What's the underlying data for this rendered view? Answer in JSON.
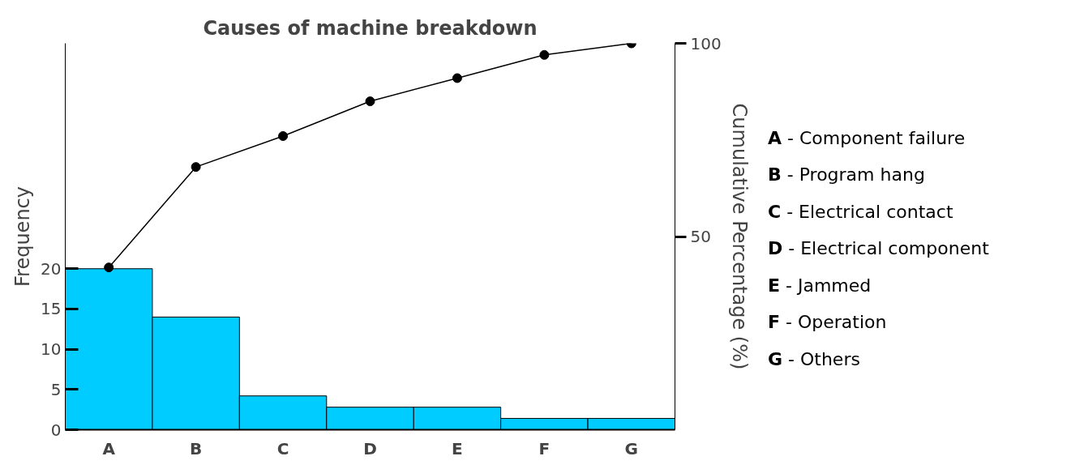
{
  "chart_data": {
    "type": "bar",
    "title": "Causes of machine breakdown",
    "ylabel": "Frequency",
    "y2label": "Cumulative Percentage (%)",
    "categories": [
      "A",
      "B",
      "C",
      "D",
      "E",
      "F",
      "G"
    ],
    "series": [
      {
        "color": "#00ccff",
        "values": [
          20,
          14,
          4.2,
          2.8,
          2.8,
          1.4,
          1.4
        ]
      },
      {
        "type": "line",
        "axis": "y2",
        "color": "#000000",
        "values": [
          42,
          68,
          76,
          85,
          91,
          97,
          100
        ],
        "marker": "circle"
      }
    ],
    "ylim": [
      0,
      48
    ],
    "yticks": [
      0,
      5,
      10,
      15,
      20
    ],
    "y2lim": [
      0,
      100
    ],
    "y2ticks": [
      50,
      100
    ],
    "grid": false,
    "annotations": [
      "A - Component failure",
      "B - Program hang",
      "C - Electrical contact",
      "D - Electrical component",
      "E - Jammed",
      "F - Operation",
      "G - Others"
    ]
  }
}
